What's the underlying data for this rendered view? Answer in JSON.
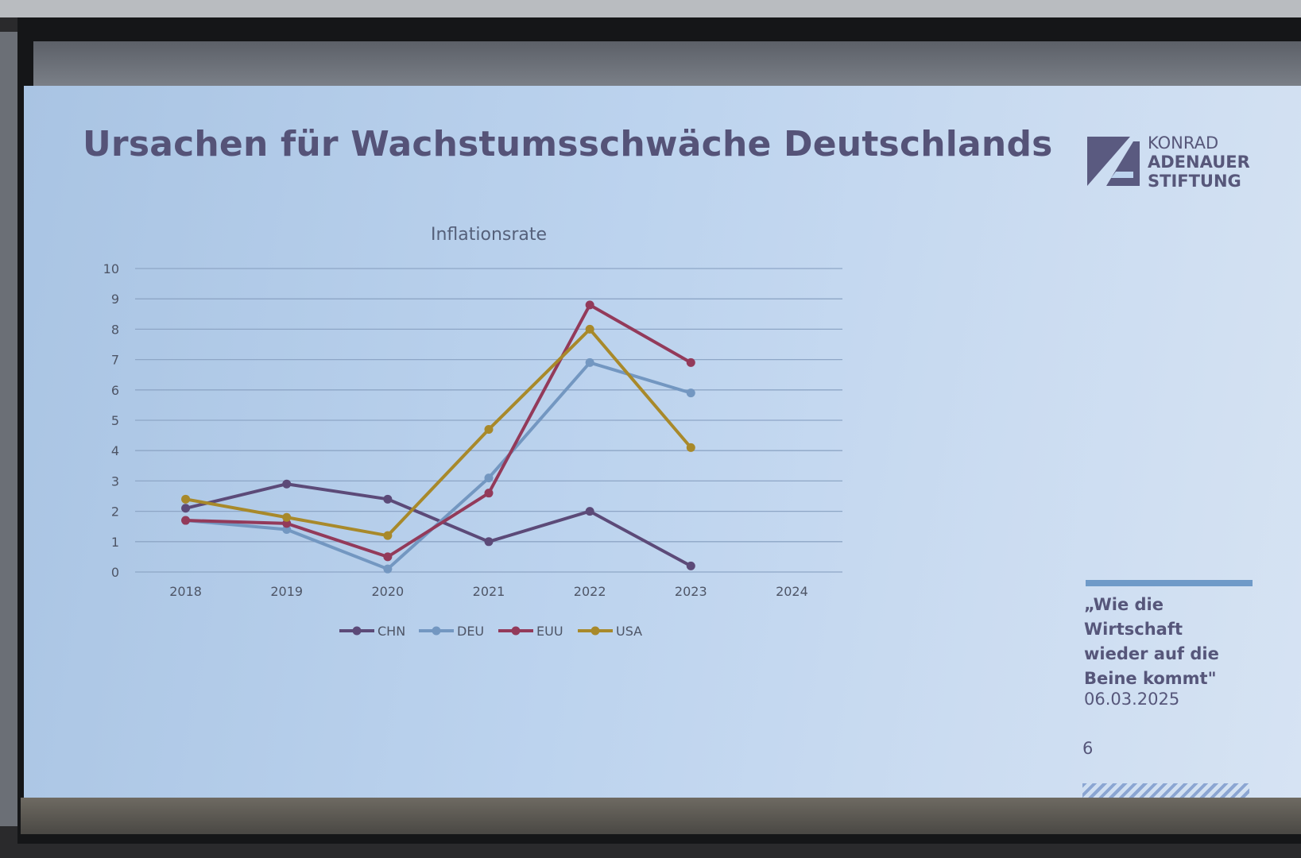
{
  "slide": {
    "title": "Ursachen für Wachstumsschwäche Deutschlands",
    "page_number": "6"
  },
  "logo": {
    "line1": "KONRAD",
    "line2": "ADENAUER",
    "line3": "STIFTUNG",
    "icon": "kas-logo-icon"
  },
  "sidebar": {
    "quote_lines": [
      "„Wie die",
      "Wirtschaft",
      "wieder auf die",
      "Beine kommt\""
    ],
    "date": "06.03.2025"
  },
  "colors": {
    "title": "#555378",
    "CHN": "#5c4a78",
    "DEU": "#7397c1",
    "EUU": "#933a5a",
    "USA": "#a8892a"
  },
  "chart_data": {
    "type": "line",
    "title": "Inflationsrate",
    "xlabel": "",
    "ylabel": "",
    "categories": [
      "2018",
      "2019",
      "2020",
      "2021",
      "2022",
      "2023",
      "2024"
    ],
    "ylim": [
      0,
      10
    ],
    "yticks": [
      "0",
      "1",
      "2",
      "3",
      "4",
      "5",
      "6",
      "7",
      "8",
      "9",
      "10"
    ],
    "grid": true,
    "legend": "bottom",
    "series": [
      {
        "name": "CHN",
        "values": [
          2.1,
          2.9,
          2.4,
          1.0,
          2.0,
          0.2,
          null
        ]
      },
      {
        "name": "DEU",
        "values": [
          1.7,
          1.4,
          0.1,
          3.1,
          6.9,
          5.9,
          null
        ]
      },
      {
        "name": "EUU",
        "values": [
          1.7,
          1.6,
          0.5,
          2.6,
          8.8,
          6.9,
          null
        ]
      },
      {
        "name": "USA",
        "values": [
          2.4,
          1.8,
          1.2,
          4.7,
          8.0,
          4.1,
          null
        ]
      }
    ]
  }
}
